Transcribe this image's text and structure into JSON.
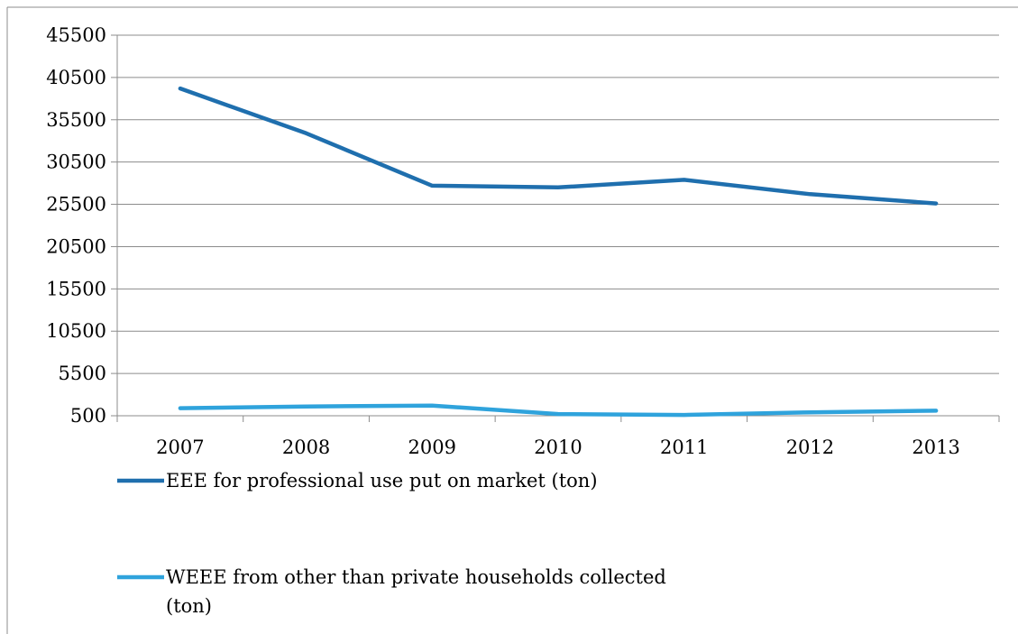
{
  "chart_data": {
    "type": "line",
    "title": "",
    "xlabel": "",
    "ylabel": "",
    "categories": [
      "2007",
      "2008",
      "2009",
      "2010",
      "2011",
      "2012",
      "2013"
    ],
    "y_ticks": [
      "500",
      "5500",
      "10500",
      "15500",
      "20500",
      "25500",
      "30500",
      "35500",
      "40500",
      "45500"
    ],
    "ylim": [
      500,
      45500
    ],
    "grid": "horizontal",
    "legend_position": "bottom",
    "series": [
      {
        "name": "EEE for professional use put on market (ton)",
        "legend_lines": [
          "EEE for professional use put on market (ton)"
        ],
        "color": "#1F6FAE",
        "values": [
          39200,
          33900,
          27700,
          27500,
          28400,
          26700,
          25600
        ]
      },
      {
        "name": "WEEE from other than private households collected (ton)",
        "legend_lines": [
          "WEEE from other than private households collected",
          "(ton)"
        ],
        "color": "#2FA3DC",
        "values": [
          1400,
          1600,
          1700,
          700,
          600,
          900,
          1100
        ]
      }
    ]
  }
}
